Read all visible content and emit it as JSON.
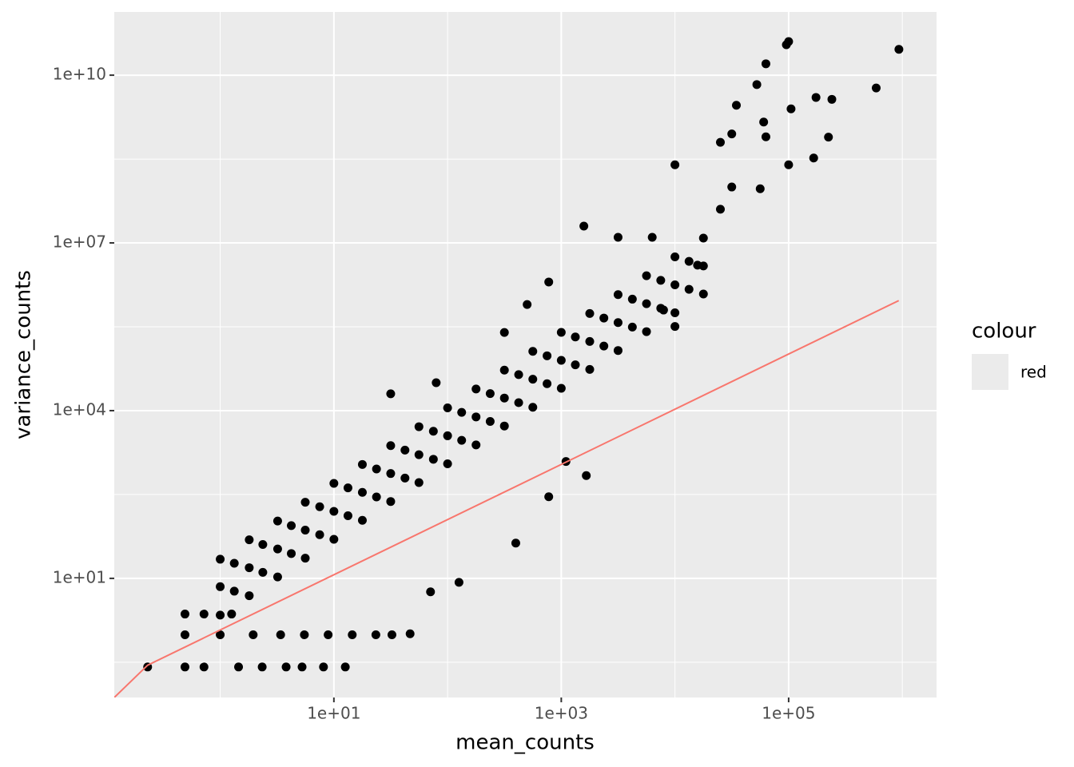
{
  "chart_data": {
    "type": "scatter",
    "x_label": "mean_counts",
    "y_label": "variance_counts",
    "log_x": true,
    "log_y": true,
    "grid": true,
    "xlim": [
      0.117,
      2000000
    ],
    "ylim": [
      0.074,
      135000000000
    ],
    "xticks": [
      {
        "value": 10,
        "label": "1e+01"
      },
      {
        "value": 1000,
        "label": "1e+03"
      },
      {
        "value": 100000,
        "label": "1e+05"
      }
    ],
    "yticks": [
      {
        "value": 10,
        "label": "1e+01"
      },
      {
        "value": 10000,
        "label": "1e+04"
      },
      {
        "value": 10000000,
        "label": "1e+07"
      },
      {
        "value": 10000000000,
        "label": "1e+10"
      }
    ],
    "x_minor_ticks": [
      1,
      100,
      10000,
      1000000
    ],
    "y_minor_ticks": [
      0.3162,
      316.2,
      316228,
      316227766
    ],
    "legend_title": "colour",
    "points": {
      "color": "#000000",
      "x": [
        1,
        1,
        1,
        1.8,
        1.8,
        1.8,
        3.2,
        3.2,
        3.2,
        5.6,
        5.6,
        5.6,
        10,
        10,
        10,
        17.8,
        17.8,
        17.8,
        31.6,
        31.6,
        31.6,
        56,
        56,
        56,
        100,
        100,
        100,
        178,
        178,
        178,
        316,
        316,
        316,
        562,
        562,
        562,
        1000,
        1000,
        1000,
        1780,
        1780,
        1780,
        3160,
        3160,
        3160,
        5620,
        5620,
        5620,
        10000,
        10000,
        10000,
        17800,
        17800,
        17800,
        1.33,
        1.33,
        2.37,
        2.37,
        4.22,
        4.22,
        7.5,
        7.5,
        13.3,
        13.3,
        23.7,
        23.7,
        42.2,
        42.2,
        75,
        75,
        133,
        133,
        237,
        237,
        422,
        422,
        750,
        750,
        1330,
        1330,
        2370,
        2370,
        4220,
        4220,
        7500,
        7500,
        13300,
        13300,
        100000,
        95500,
        933000,
        63100,
        589000,
        52500,
        174000,
        240000,
        105000,
        34700,
        60300,
        63100,
        224000,
        31600,
        25100,
        166000,
        100000,
        10000,
        31600,
        56200,
        25100,
        1580,
        3160,
        6310,
        776,
        501,
        15800,
        7940,
        10000,
        316,
        79.4,
        31.6,
        1100,
        1660,
        776,
        398,
        126,
        46.8,
        70.8,
        0.23,
        0.49,
        0.72,
        1.45,
        2.34,
        3.8,
        5.25,
        8.1,
        12.6,
        0.49,
        1,
        1.95,
        3.4,
        5.5,
        8.9,
        14.5,
        23.4,
        32.4,
        0.72,
        1.26,
        0.49
      ],
      "y": [
        2.2,
        7.1,
        22,
        4.9,
        15.5,
        49,
        10.6,
        33.5,
        106,
        23,
        73,
        230,
        50,
        158,
        500,
        109,
        345,
        1090,
        237,
        750,
        2370,
        516,
        1630,
        5160,
        1120,
        3550,
        11200,
        2440,
        7720,
        24400,
        5310,
        16800,
        53100,
        11500,
        36500,
        115000,
        25100,
        79400,
        251000,
        54600,
        173000,
        546000,
        119000,
        376000,
        1190000,
        259000,
        818000,
        2590000,
        562000,
        1780000,
        5620000,
        1220000,
        3870000,
        12200000,
        5.9,
        18.6,
        12.8,
        40.4,
        27.8,
        87.9,
        60.4,
        191,
        132,
        416,
        286,
        904,
        622,
        1970,
        1350,
        4280,
        2940,
        9310,
        6400,
        20200,
        13900,
        44100,
        30300,
        95700,
        65900,
        208000,
        143000,
        453000,
        312000,
        986000,
        678000,
        2140000,
        1480000,
        4670000,
        40000000000,
        35000000000,
        29000000000,
        16000000000,
        5900000000,
        6800000000,
        4000000000,
        3700000000,
        2500000000,
        2900000000,
        1450000000,
        790000000,
        780000000,
        890000000,
        630000000,
        330000000,
        250000000,
        250000000,
        100000000,
        93000000,
        40000000,
        20000000,
        12600000,
        12600000,
        2000000,
        790000,
        4000000,
        630000,
        320000,
        250000,
        31600,
        20000,
        1230,
        690,
        288,
        42.7,
        8.5,
        1.02,
        5.75,
        0.26,
        0.26,
        0.26,
        0.26,
        0.26,
        0.26,
        0.26,
        0.26,
        0.26,
        0.98,
        0.98,
        0.98,
        0.98,
        0.98,
        0.98,
        0.98,
        0.98,
        0.98,
        2.3,
        2.3,
        2.3
      ]
    },
    "line": {
      "name": "red",
      "color": "#f8766d",
      "x": [
        0.117,
        0.23,
        930000
      ],
      "y": [
        0.074,
        0.28,
        930000
      ]
    }
  }
}
